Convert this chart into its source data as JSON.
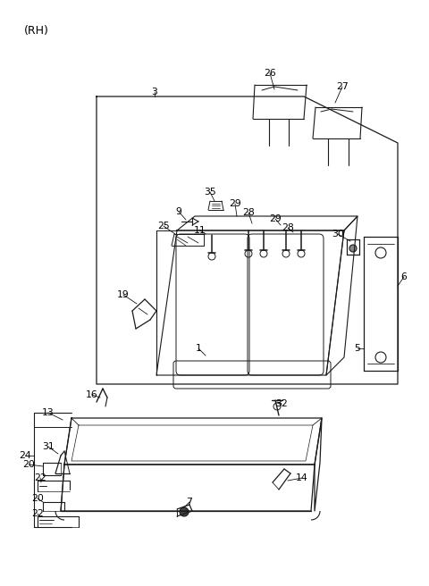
{
  "background_color": "#ffffff",
  "line_color": "#1a1a1a",
  "figsize": [
    4.8,
    6.56
  ],
  "dpi": 100,
  "title": "(RH)"
}
